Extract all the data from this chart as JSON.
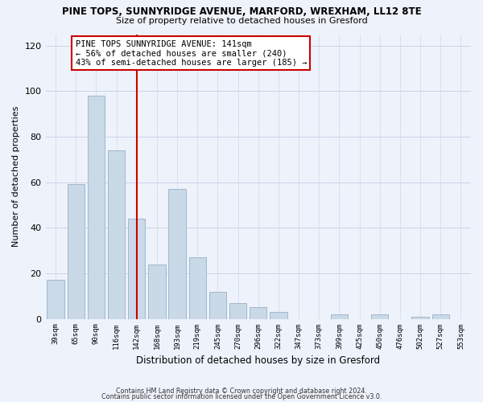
{
  "title": "PINE TOPS, SUNNYRIDGE AVENUE, MARFORD, WREXHAM, LL12 8TE",
  "subtitle": "Size of property relative to detached houses in Gresford",
  "xlabel": "Distribution of detached houses by size in Gresford",
  "ylabel": "Number of detached properties",
  "bar_labels": [
    "39sqm",
    "65sqm",
    "90sqm",
    "116sqm",
    "142sqm",
    "168sqm",
    "193sqm",
    "219sqm",
    "245sqm",
    "270sqm",
    "296sqm",
    "322sqm",
    "347sqm",
    "373sqm",
    "399sqm",
    "425sqm",
    "450sqm",
    "476sqm",
    "502sqm",
    "527sqm",
    "553sqm"
  ],
  "bar_values": [
    17,
    59,
    98,
    74,
    44,
    24,
    57,
    27,
    12,
    7,
    5,
    3,
    0,
    0,
    2,
    0,
    2,
    0,
    1,
    2,
    0
  ],
  "bar_color": "#c9d9e8",
  "bar_edge_color": "#a0b8cc",
  "vline_x_index": 4,
  "vline_color": "#cc0000",
  "ylim": [
    0,
    125
  ],
  "yticks": [
    0,
    20,
    40,
    60,
    80,
    100,
    120
  ],
  "annotation_title": "PINE TOPS SUNNYRIDGE AVENUE: 141sqm",
  "annotation_line1": "← 56% of detached houses are smaller (240)",
  "annotation_line2": "43% of semi-detached houses are larger (185) →",
  "footer1": "Contains HM Land Registry data © Crown copyright and database right 2024.",
  "footer2": "Contains public sector information licensed under the Open Government Licence v3.0.",
  "background_color": "#eef2fa",
  "grid_color": "#c8d4e8"
}
